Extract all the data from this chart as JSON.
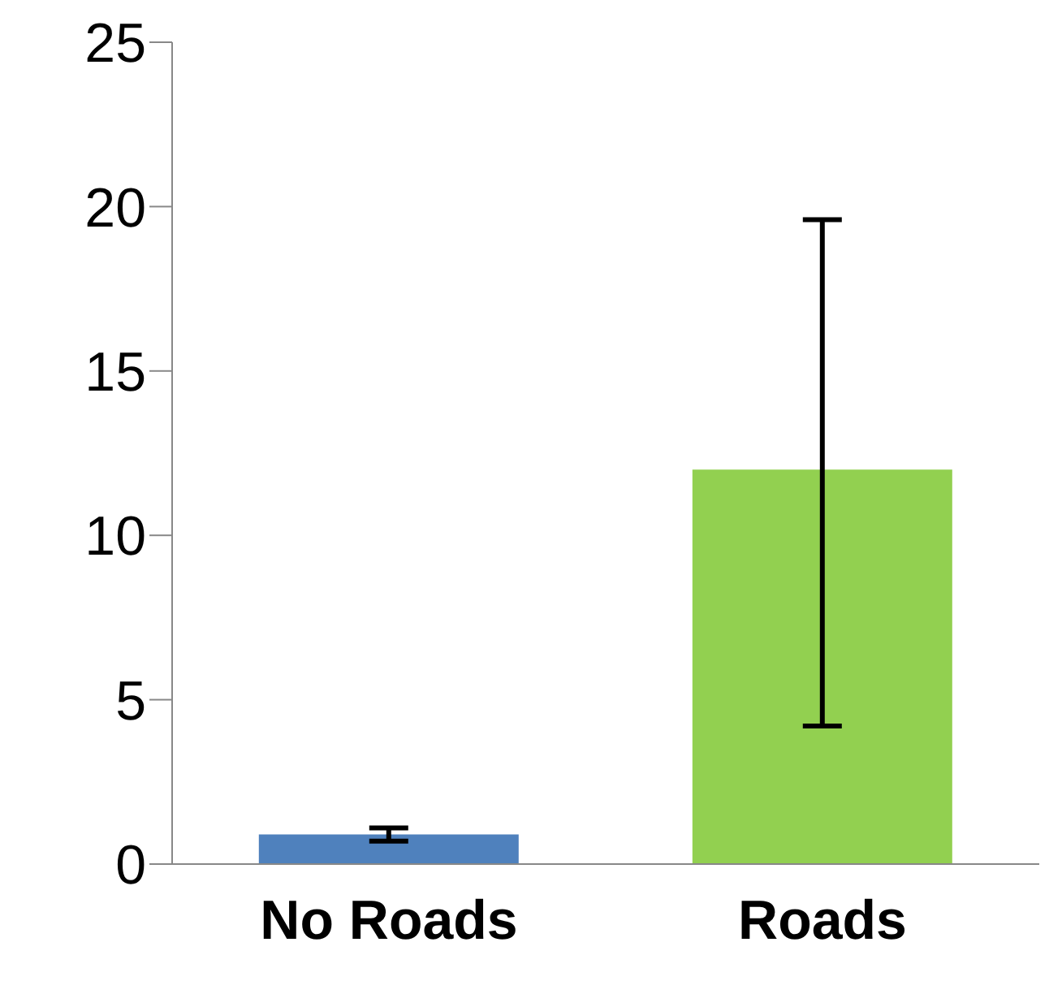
{
  "chart_data": {
    "type": "bar",
    "categories": [
      "No Roads",
      "Roads"
    ],
    "values": [
      0.9,
      12
    ],
    "colors": [
      "#4f81bd",
      "#92d050"
    ],
    "errors": [
      0.2,
      [
        4.2,
        19.6
      ]
    ],
    "ylim": [
      0,
      25
    ],
    "yticks": [
      0,
      5,
      10,
      15,
      20,
      25
    ],
    "grid": false
  }
}
